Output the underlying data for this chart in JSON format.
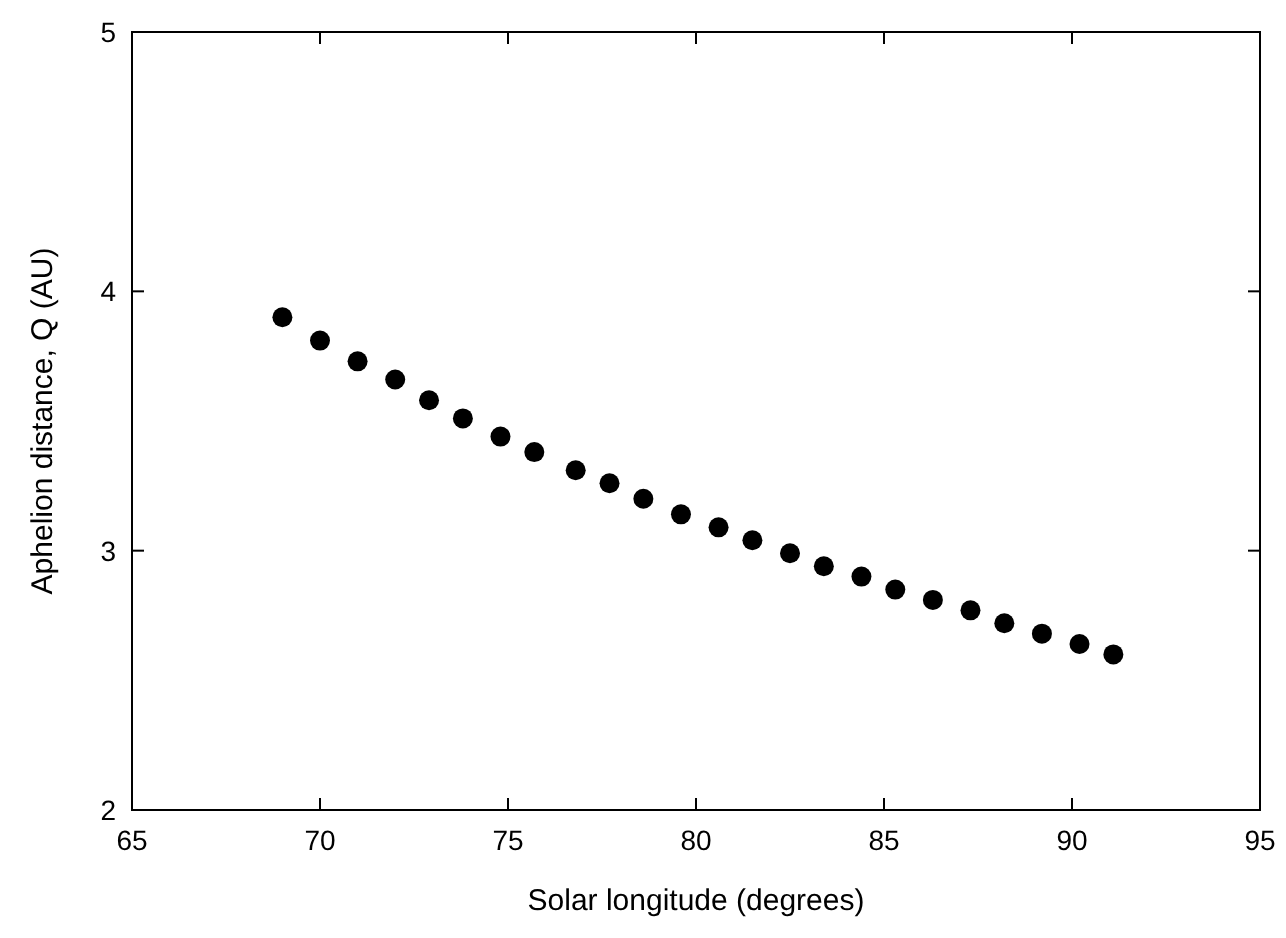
{
  "chart_data": {
    "type": "scatter",
    "xlabel": "Solar longitude (degrees)",
    "ylabel": "Aphelion distance, Q (AU)",
    "x": [
      69.0,
      70.0,
      71.0,
      72.0,
      72.9,
      73.8,
      74.8,
      75.7,
      76.8,
      77.7,
      78.6,
      79.6,
      80.6,
      81.5,
      82.5,
      83.4,
      84.4,
      85.3,
      86.3,
      87.3,
      88.2,
      89.2,
      90.2,
      91.1
    ],
    "series": [
      {
        "color": "#000000",
        "values": [
          3.9,
          3.81,
          3.73,
          3.66,
          3.58,
          3.51,
          3.44,
          3.38,
          3.31,
          3.26,
          3.2,
          3.14,
          3.09,
          3.04,
          2.99,
          2.94,
          2.9,
          2.85,
          2.81,
          2.77,
          2.72,
          2.68,
          2.64,
          2.6
        ]
      }
    ],
    "xlim": [
      65,
      95
    ],
    "xticks": [
      65,
      70,
      75,
      80,
      85,
      90,
      95
    ],
    "ylim": [
      2,
      5
    ],
    "yticks": [
      2,
      3,
      4,
      5
    ],
    "marker": "circle",
    "grid": false
  }
}
